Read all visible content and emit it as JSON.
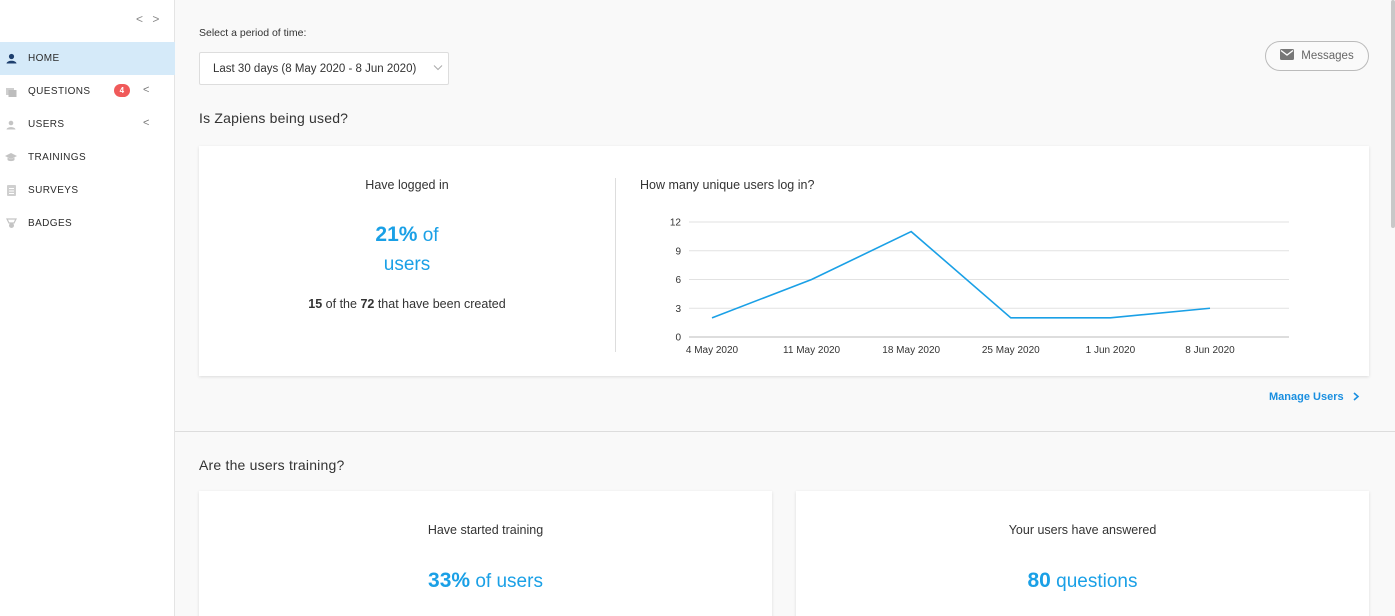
{
  "sidebar": {
    "toggle_label": "< >",
    "items": [
      {
        "label": "HOME",
        "icon": "home-icon",
        "active": true
      },
      {
        "label": "QUESTIONS",
        "icon": "questions-icon",
        "badge": "4",
        "chevron": "<"
      },
      {
        "label": "USERS",
        "icon": "users-icon",
        "chevron": "<"
      },
      {
        "label": "TRAININGS",
        "icon": "trainings-icon"
      },
      {
        "label": "SURVEYS",
        "icon": "surveys-icon"
      },
      {
        "label": "BADGES",
        "icon": "badges-icon"
      }
    ]
  },
  "header": {
    "period_label": "Select a period of time:",
    "period_value": "Last 30 days (8 May 2020 - 8 Jun 2020)",
    "messages_label": "Messages"
  },
  "usage": {
    "title": "Is Zapiens being used?",
    "logged_title": "Have logged in",
    "logged_percent": "21%",
    "logged_of": "of",
    "logged_unit": "users",
    "logged_count": "15",
    "logged_mid": "of the",
    "logged_total": "72",
    "logged_tail": "that have been created",
    "chart_title": "How many unique users log in?",
    "manage_label": "Manage Users"
  },
  "training": {
    "title": "Are the users training?",
    "started_title": "Have started training",
    "started_percent": "33%",
    "started_unit": "of users",
    "answered_title": "Your users have answered",
    "answered_count": "80",
    "answered_unit": "questions"
  },
  "colors": {
    "accent": "#1aa0e6",
    "badge": "#f05a5a",
    "active_nav": "#d5eaf9"
  },
  "chart_data": {
    "type": "line",
    "title": "How many unique users log in?",
    "categories": [
      "4 May 2020",
      "11 May 2020",
      "18 May 2020",
      "25 May 2020",
      "1 Jun 2020",
      "8 Jun 2020"
    ],
    "series": [
      {
        "values": [
          2,
          6,
          11,
          2,
          2,
          3
        ]
      }
    ],
    "yticks": [
      0,
      3,
      6,
      9,
      12
    ],
    "ylim": [
      0,
      12
    ],
    "grid": true,
    "color": "#1aa0e6"
  }
}
